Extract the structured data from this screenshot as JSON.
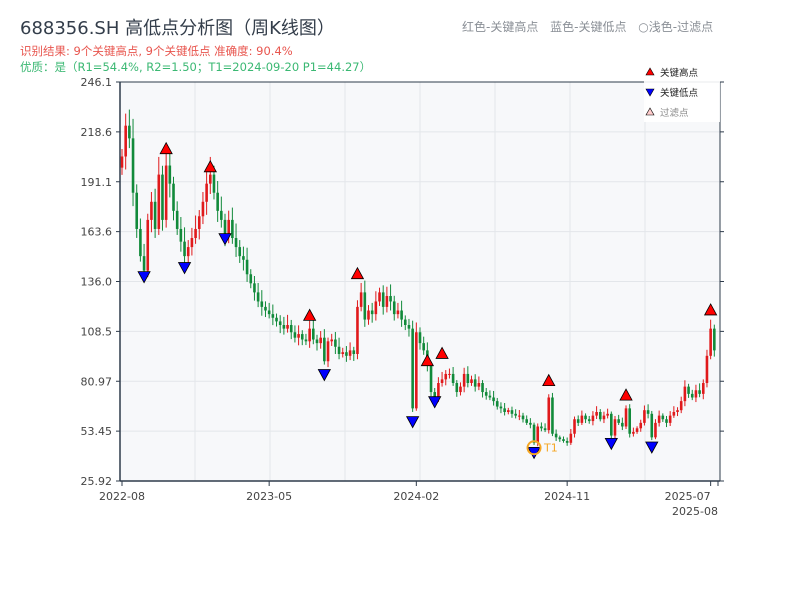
{
  "header": {
    "title": "688356.SH 高低点分析图（周K线图）",
    "result": "识别结果: 9个关键高点, 9个关键低点  准确度: 90.4%",
    "quality": "优质：是（R1=54.4%, R2=1.50；T1=2024-09-20 P1=44.27）",
    "hint": "红色-关键高点  蓝色-关键低点 ○浅色-过滤点"
  },
  "chart_data": {
    "type": "candlestick",
    "title": "688356.SH 高低点分析图（周K线图）",
    "ylim": [
      25.92,
      246.1
    ],
    "yticks": [
      "246.1",
      "218.6",
      "191.1",
      "163.6",
      "136.0",
      "108.5",
      "80.97",
      "53.45",
      "25.92"
    ],
    "xticks": [
      {
        "label": "2022-08",
        "week": 0
      },
      {
        "label": "2023-05",
        "week": 40
      },
      {
        "label": "2024-02",
        "week": 80
      },
      {
        "label": "2024-11",
        "week": 121
      },
      {
        "label": "2025-07",
        "week": 160
      },
      {
        "label": "2025-08",
        "week": 162
      }
    ],
    "grid": true,
    "legend": {
      "position": "top-right",
      "items": [
        {
          "label": "关键高点",
          "color": "#ff0000"
        },
        {
          "label": "关键低点",
          "color": "#0000ff"
        },
        {
          "label": "过滤点",
          "color": "#ffcccc"
        }
      ]
    },
    "closes": [
      205,
      222,
      215,
      185,
      165,
      150,
      142,
      170,
      180,
      165,
      195,
      170,
      200,
      190,
      175,
      165,
      158,
      150,
      155,
      160,
      165,
      172,
      180,
      190,
      195,
      185,
      175,
      170,
      162,
      170,
      160,
      155,
      150,
      148,
      140,
      135,
      130,
      125,
      122,
      120,
      118,
      116,
      114,
      112,
      110,
      112,
      108,
      105,
      107,
      104,
      103,
      110,
      104,
      102,
      105,
      92,
      103,
      104,
      100,
      96,
      97,
      95,
      98,
      96,
      122,
      130,
      115,
      120,
      118,
      125,
      130,
      122,
      128,
      125,
      118,
      120,
      115,
      112,
      110,
      66,
      108,
      102,
      98,
      90,
      75,
      72,
      80,
      82,
      85,
      85,
      80,
      75,
      78,
      85,
      80,
      82,
      78,
      80,
      75,
      73,
      72,
      70,
      67,
      66,
      64,
      65,
      63,
      62,
      62,
      60,
      58,
      57,
      47,
      56,
      55,
      54,
      72,
      52,
      50,
      49,
      48,
      47,
      52,
      60,
      58,
      62,
      60,
      59,
      62,
      64,
      60,
      62,
      63,
      51,
      60,
      58,
      56,
      66,
      52,
      53,
      55,
      58,
      65,
      63,
      50,
      58,
      62,
      60,
      58,
      62,
      64,
      65,
      70,
      78,
      74,
      72,
      76,
      74,
      80,
      95,
      110,
      98
    ],
    "high_points": [
      {
        "week": 12,
        "price": 206
      },
      {
        "week": 24,
        "price": 196
      },
      {
        "week": 51,
        "price": 114
      },
      {
        "week": 64,
        "price": 137
      },
      {
        "week": 83,
        "price": 89
      },
      {
        "week": 87,
        "price": 93
      },
      {
        "week": 116,
        "price": 78
      },
      {
        "week": 137,
        "price": 70
      },
      {
        "week": 160,
        "price": 117
      }
    ],
    "low_points": [
      {
        "week": 6,
        "price": 142
      },
      {
        "week": 17,
        "price": 147
      },
      {
        "week": 28,
        "price": 163
      },
      {
        "week": 55,
        "price": 88
      },
      {
        "week": 79,
        "price": 62
      },
      {
        "week": 85,
        "price": 73
      },
      {
        "week": 112,
        "price": 45
      },
      {
        "week": 133,
        "price": 50
      },
      {
        "week": 144,
        "price": 48
      }
    ],
    "t1": {
      "label": "T1",
      "week": 112,
      "price": 44.27
    },
    "colors": {
      "up": "#e0191b",
      "down": "#118a3a",
      "high": "#ff0000",
      "low": "#0000ff",
      "t1": "#f5a623"
    }
  }
}
